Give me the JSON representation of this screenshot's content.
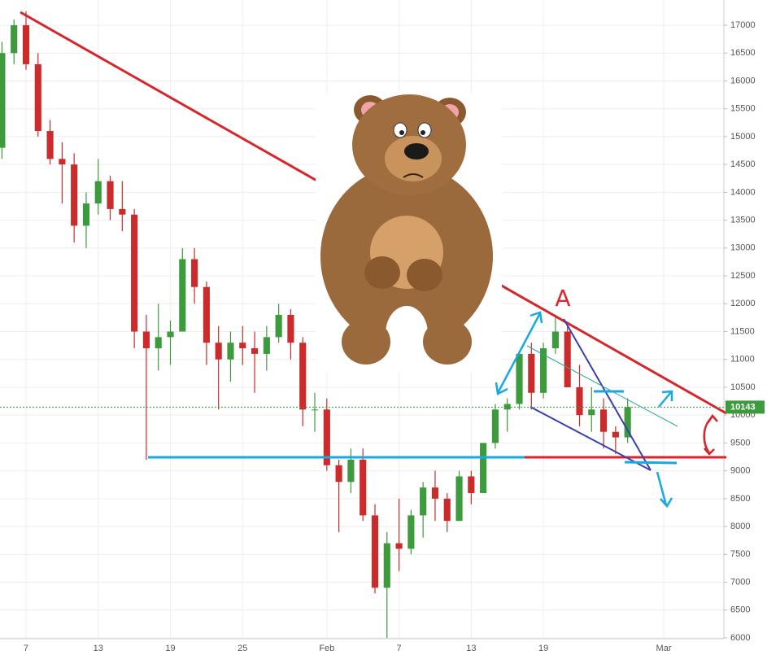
{
  "chart_data": {
    "type": "candlestick",
    "categories": [
      null,
      null,
      "7",
      null,
      null,
      null,
      null,
      null,
      "13",
      null,
      null,
      null,
      null,
      null,
      "19",
      null,
      null,
      null,
      null,
      null,
      "25",
      null,
      null,
      null,
      null,
      null,
      null,
      "Feb",
      null,
      null,
      null,
      null,
      null,
      "7",
      null,
      null,
      null,
      null,
      null,
      "13",
      null,
      null,
      null,
      null,
      null,
      "19",
      null,
      null,
      null,
      null,
      null,
      null,
      null,
      null,
      null,
      "Mar",
      null,
      null,
      null,
      null,
      null
    ],
    "open": [
      14800,
      16500,
      17000,
      16300,
      15100,
      14600,
      14500,
      13400,
      13800,
      14200,
      13700,
      13600,
      11500,
      11200,
      11400,
      11500,
      12800,
      12300,
      11300,
      11000,
      11300,
      11200,
      11100,
      11400,
      11800,
      11300,
      10100,
      10100,
      9100,
      8800,
      9200,
      8200,
      6900,
      7700,
      7600,
      8200,
      8700,
      8500,
      8100,
      8900,
      8600,
      9500,
      10100,
      10200,
      11100,
      10400,
      11200,
      11500,
      10500,
      10000,
      10100,
      9700,
      9600,
      null,
      null,
      null,
      null,
      null,
      null,
      null,
      null
    ],
    "high": [
      16700,
      17100,
      17250,
      16500,
      15300,
      14900,
      14700,
      14000,
      14600,
      14300,
      14200,
      13700,
      11800,
      12000,
      11700,
      13000,
      13000,
      12400,
      11600,
      11500,
      11600,
      11500,
      11600,
      12000,
      11900,
      11400,
      10400,
      10300,
      9200,
      9400,
      9400,
      8400,
      7900,
      8500,
      8300,
      8800,
      9000,
      8600,
      9000,
      9000,
      9500,
      10200,
      10300,
      11100,
      11300,
      11300,
      11800,
      11600,
      10900,
      10500,
      10300,
      9800,
      10300,
      null,
      null,
      null,
      null,
      null,
      null,
      null,
      null
    ],
    "low": [
      14600,
      16300,
      16200,
      15000,
      14500,
      13800,
      13100,
      13000,
      13600,
      13500,
      13300,
      11200,
      9200,
      10800,
      10900,
      11500,
      12000,
      10900,
      10100,
      10600,
      10900,
      10400,
      10800,
      11300,
      11000,
      9800,
      9700,
      9000,
      7900,
      8600,
      8100,
      6800,
      6000,
      7200,
      7500,
      7800,
      8100,
      7900,
      8100,
      8400,
      8600,
      9400,
      9700,
      10100,
      10100,
      10300,
      11100,
      10500,
      9800,
      9700,
      9400,
      9300,
      9500,
      null,
      null,
      null,
      null,
      null,
      null,
      null,
      null
    ],
    "close": [
      16500,
      17000,
      16300,
      15100,
      14600,
      14500,
      13400,
      13800,
      14200,
      13700,
      13600,
      11500,
      11200,
      11400,
      11500,
      12800,
      12300,
      11300,
      11000,
      11300,
      11200,
      11100,
      11400,
      11800,
      11300,
      10100,
      10100,
      9100,
      8800,
      9200,
      8200,
      6900,
      7700,
      7600,
      8200,
      8700,
      8500,
      8100,
      8900,
      8600,
      9500,
      10100,
      10200,
      11100,
      10400,
      11200,
      11500,
      10500,
      10000,
      10100,
      9700,
      9600,
      10143,
      null,
      null,
      null,
      null,
      null,
      null,
      null,
      null
    ],
    "up_color": "#3d9a3d",
    "down_color": "#cc2b2b",
    "ylim": [
      5693,
      17453
    ],
    "yticks": [
      6000,
      6500,
      7000,
      7500,
      8000,
      8500,
      9000,
      9500,
      10000,
      10500,
      11000,
      11500,
      12000,
      12500,
      13000,
      13500,
      14000,
      14500,
      15000,
      15500,
      16000,
      16500,
      17000
    ],
    "grid": true,
    "annotation": "A"
  }
}
